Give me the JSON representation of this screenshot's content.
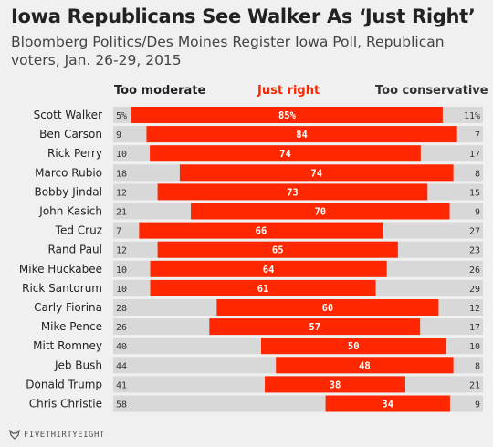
{
  "title": "Iowa Republicans See Walker As ‘Just Right’",
  "subtitle": "Bloomberg Politics/Des Moines Register Iowa Poll, Republican voters, Jan. 26-29, 2015",
  "headers": {
    "left": "Too moderate",
    "mid": "Just right",
    "right": "Too conservative"
  },
  "footer": {
    "brand": "FIVETHIRTYEIGHT",
    "logo_icon": "fivethirtyeight-fox-icon"
  },
  "colors": {
    "bar": "#ff2700",
    "track": "#d8d8d8",
    "background": "#f0f0f0"
  },
  "chart_data": {
    "type": "bar",
    "stacked": true,
    "orientation": "horizontal",
    "categories": [
      "Scott Walker",
      "Ben Carson",
      "Rick Perry",
      "Marco Rubio",
      "Bobby Jindal",
      "John Kasich",
      "Ted Cruz",
      "Rand Paul",
      "Mike Huckabee",
      "Rick Santorum",
      "Carly Fiorina",
      "Mike Pence",
      "Mitt Romney",
      "Jeb Bush",
      "Donald Trump",
      "Chris Christie"
    ],
    "series": [
      {
        "name": "Too moderate",
        "values": [
          5,
          9,
          10,
          18,
          12,
          21,
          7,
          12,
          10,
          10,
          28,
          26,
          40,
          44,
          41,
          58
        ]
      },
      {
        "name": "Just right",
        "values": [
          85,
          84,
          74,
          74,
          73,
          70,
          66,
          65,
          64,
          61,
          60,
          57,
          50,
          48,
          38,
          34
        ]
      },
      {
        "name": "Too conservative",
        "values": [
          11,
          7,
          17,
          8,
          15,
          9,
          27,
          23,
          26,
          29,
          12,
          17,
          10,
          8,
          21,
          9
        ]
      }
    ],
    "first_row_labels": {
      "left": "5%",
      "mid": "85%",
      "right": "11%"
    },
    "title": "Iowa Republicans See Walker As ‘Just Right’",
    "xlim": [
      0,
      100
    ]
  }
}
